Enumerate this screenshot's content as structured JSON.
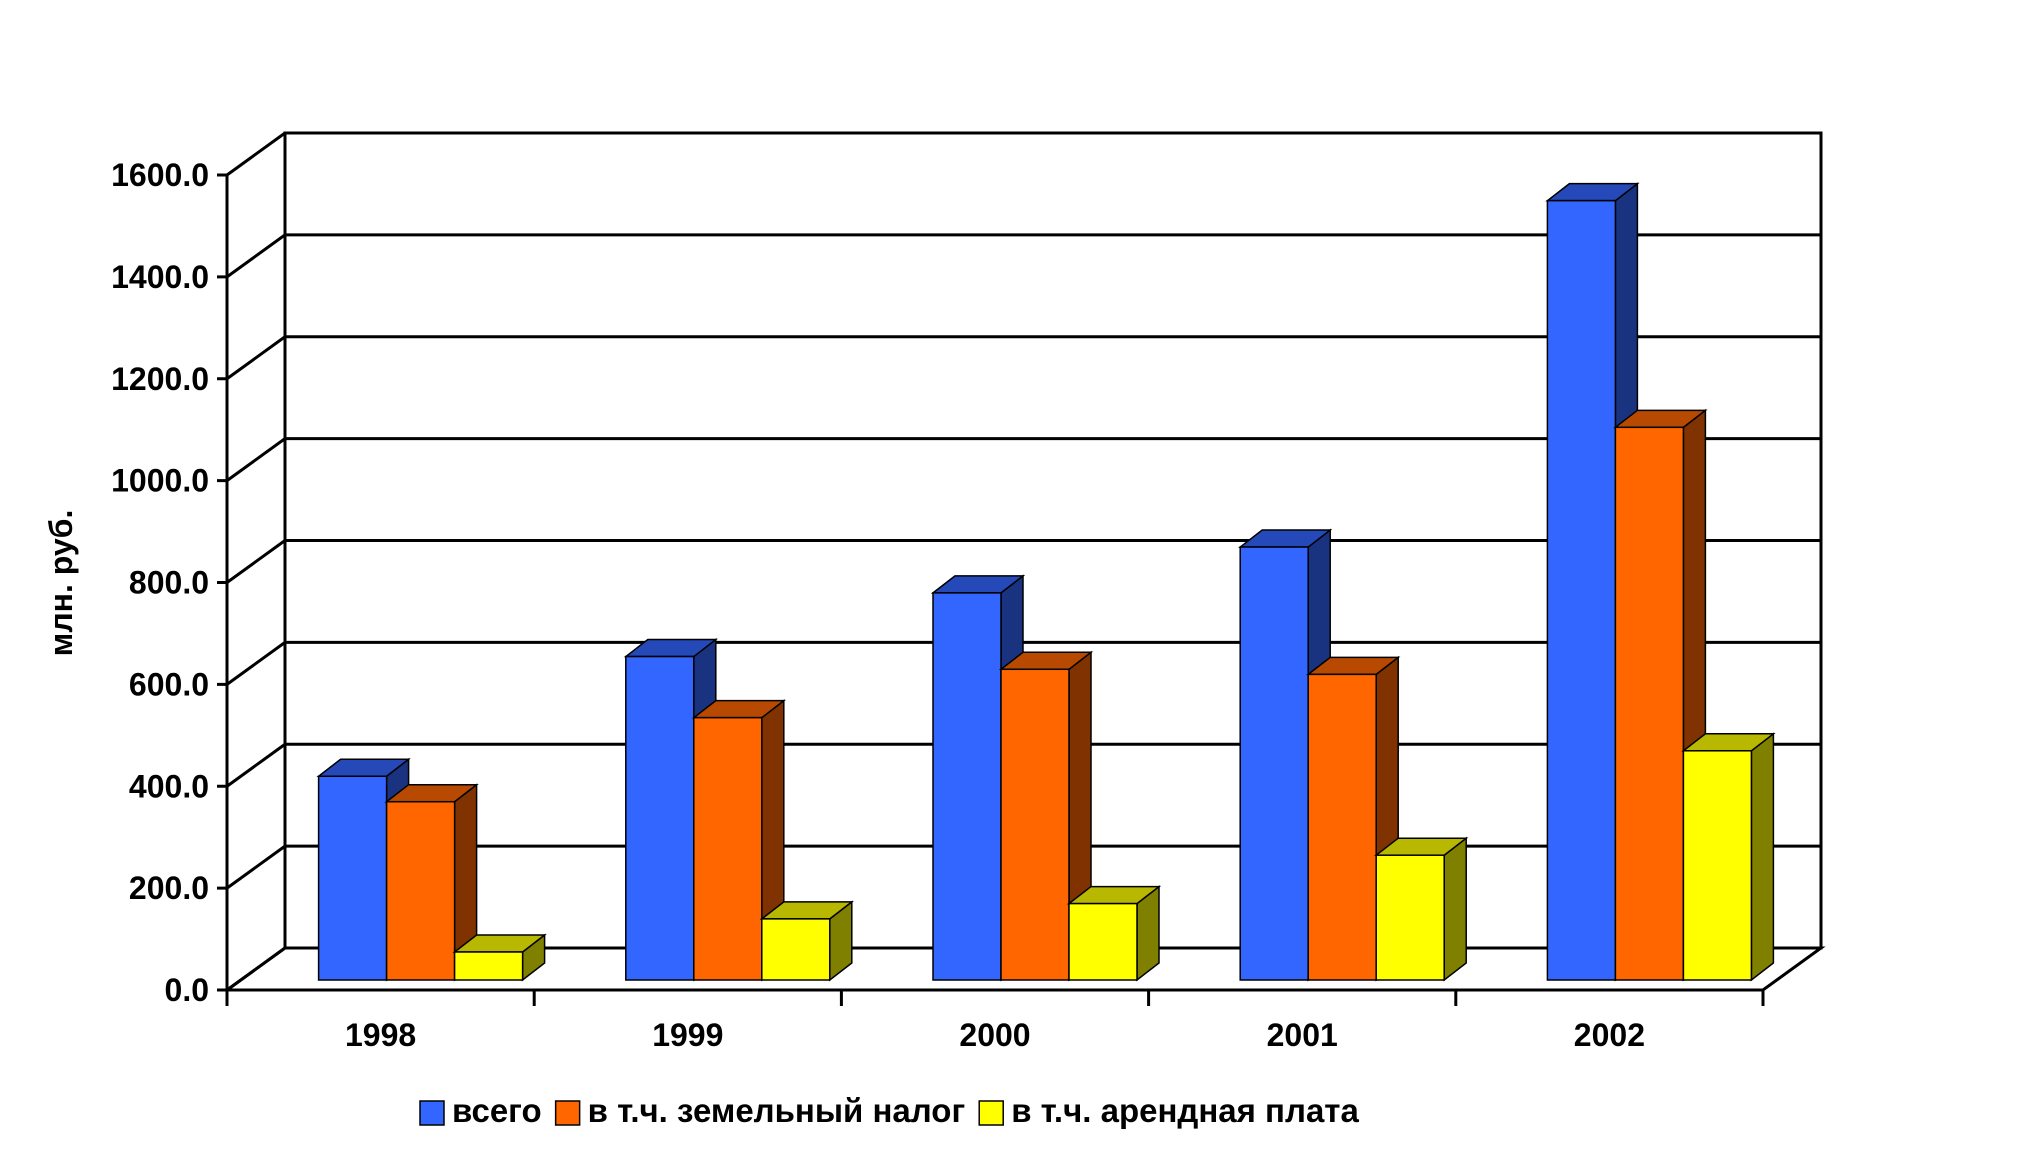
{
  "chart_data": {
    "type": "bar",
    "title": "",
    "xlabel": "",
    "ylabel": "млн. руб.",
    "categories": [
      "1998",
      "1999",
      "2000",
      "2001",
      "2002"
    ],
    "series": [
      {
        "name": "всего",
        "values": [
          400,
          635,
          760,
          850,
          1530
        ],
        "color": "#3366ff"
      },
      {
        "name": "в т.ч. земельный налог",
        "values": [
          350,
          515,
          610,
          600,
          1085
        ],
        "color": "#ff6600"
      },
      {
        "name": "в т.ч. арендная плата",
        "values": [
          55,
          120,
          150,
          245,
          450
        ],
        "color": "#ffff00"
      }
    ],
    "ylim": [
      0,
      1600
    ],
    "y_ticks": [
      "0.0",
      "200.0",
      "400.0",
      "600.0",
      "800.0",
      "1000.0",
      "1200.0",
      "1400.0",
      "1600.0"
    ],
    "grid": true,
    "legend_position": "bottom",
    "style": "3d-clustered"
  }
}
